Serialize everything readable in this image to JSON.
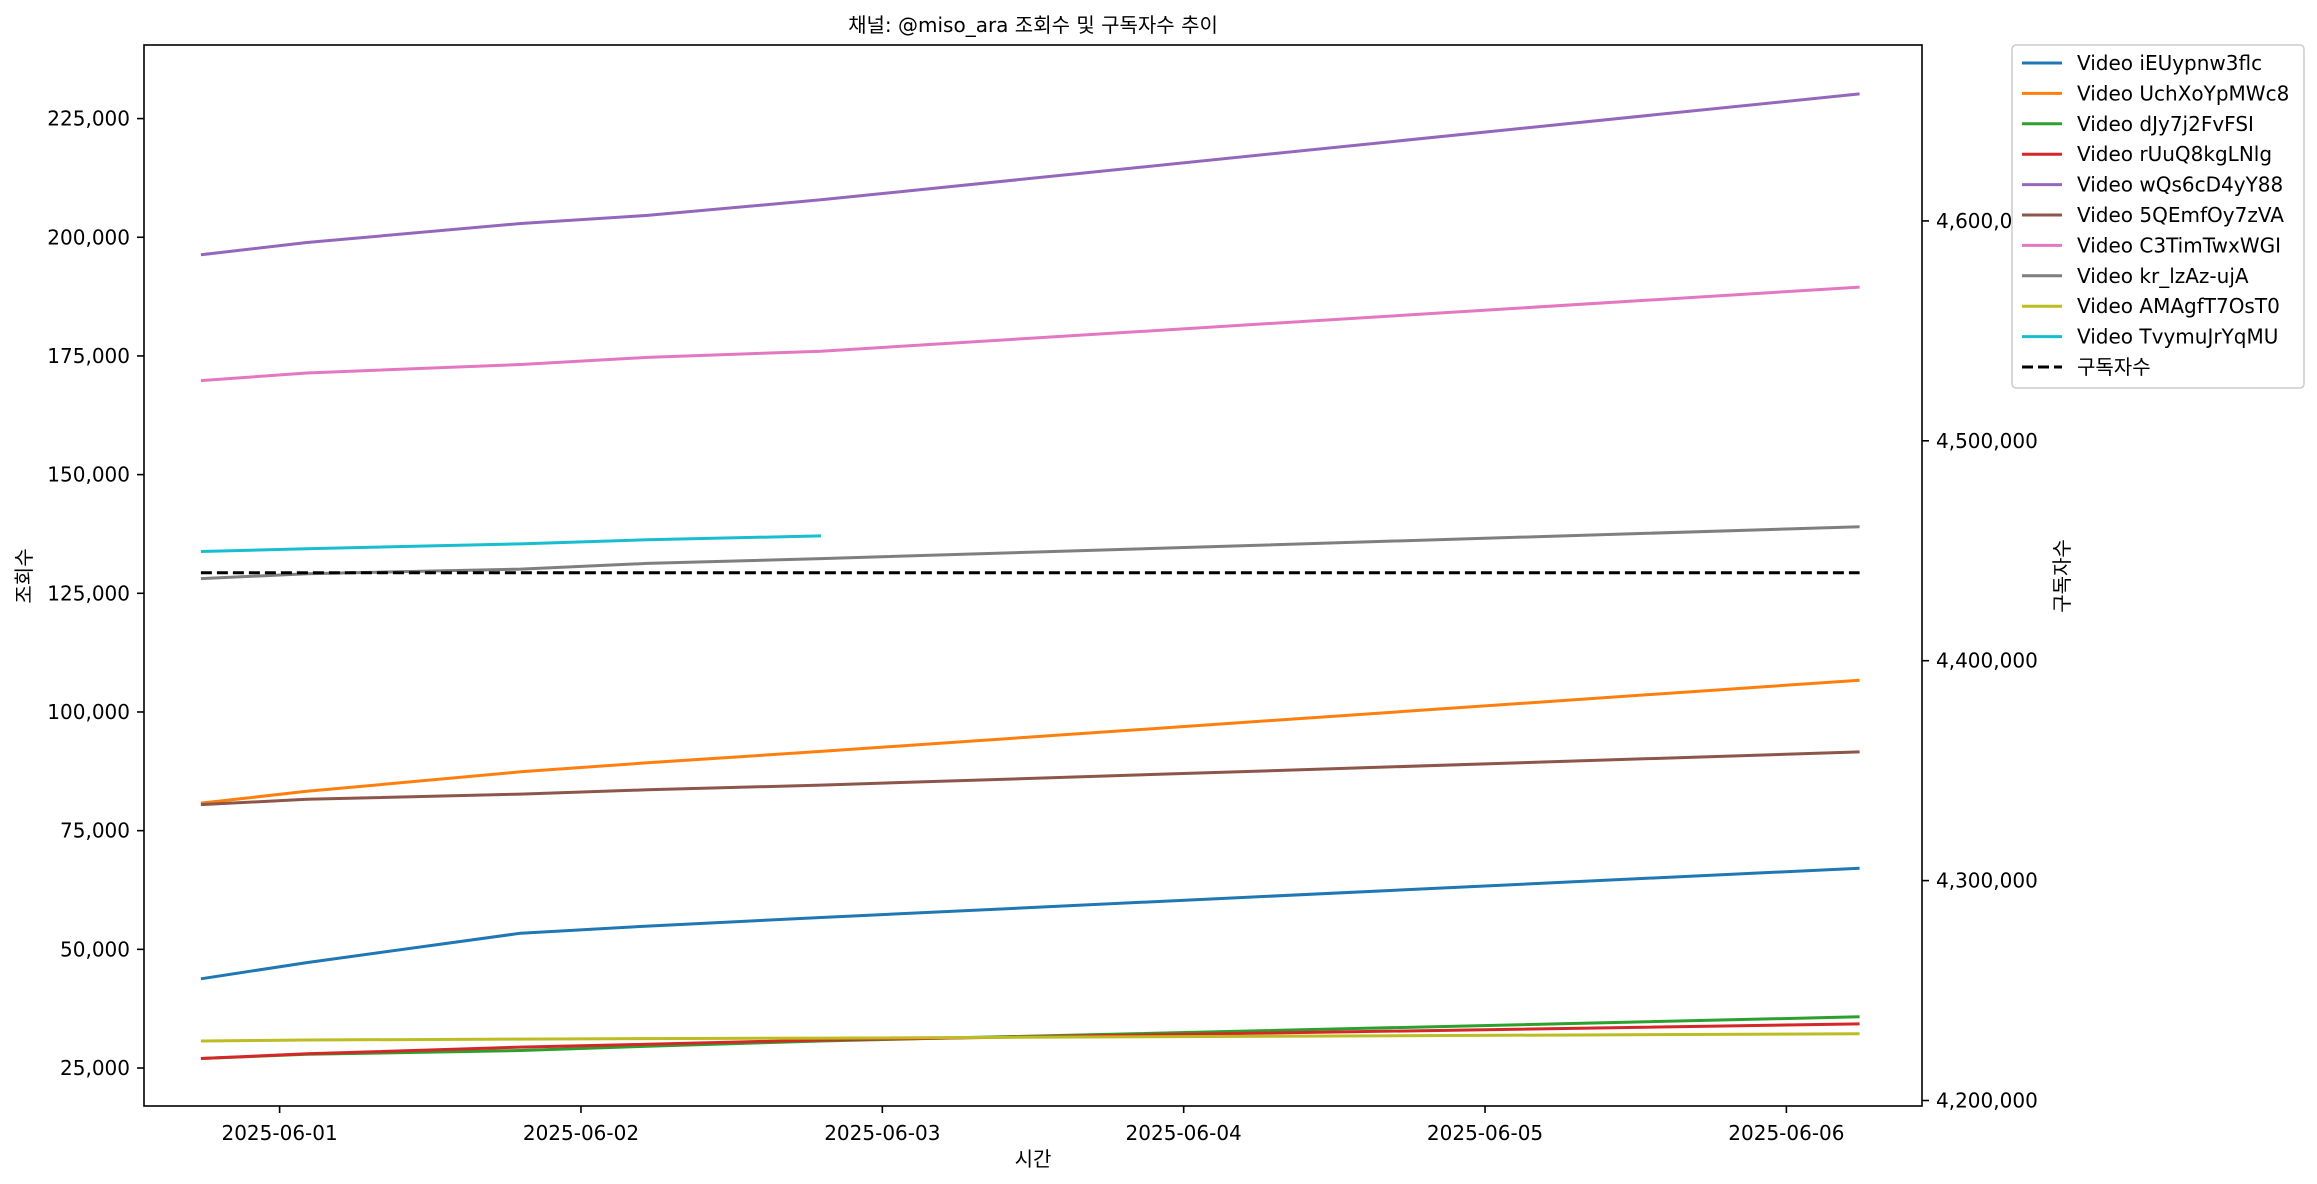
{
  "chart_data": {
    "type": "line",
    "title": "채널: @miso_ara 조회수 및 구독자수 추이",
    "xlabel": "시간",
    "ylabel": "조회수",
    "y2label": "구독자수",
    "xlim": [
      "2025-05-31T13:12",
      "2025-06-06T10:48"
    ],
    "ylim": [
      17000,
      240500
    ],
    "y2lim": [
      4197500,
      4680000
    ],
    "x_ticks": [
      "2025-06-01",
      "2025-06-02",
      "2025-06-03",
      "2025-06-04",
      "2025-06-05",
      "2025-06-06"
    ],
    "y_ticks": [
      25000,
      50000,
      75000,
      100000,
      125000,
      150000,
      175000,
      200000,
      225000
    ],
    "y_tick_labels": [
      "25,000",
      "50,000",
      "75,000",
      "100,000",
      "125,000",
      "150,000",
      "175,000",
      "200,000",
      "225,000"
    ],
    "y2_ticks": [
      4200000,
      4300000,
      4400000,
      4500000,
      4600000
    ],
    "y2_tick_labels": [
      "4,200,000",
      "4,300,000",
      "4,400,000",
      "4,500,000",
      "4,600,000"
    ],
    "grid": false,
    "legend_position": "outside top-right",
    "series": [
      {
        "name": "Video iEUypnw3flc",
        "color": "#1f77b4",
        "axis": "left",
        "x": [
          "2025-05-31T17:44",
          "2025-06-01T02:10",
          "2025-06-01T19:12",
          "2025-06-02T05:17",
          "2025-06-02T19:07",
          "2025-06-06T05:50"
        ],
        "y": [
          43800,
          47200,
          53400,
          54900,
          56700,
          67100
        ]
      },
      {
        "name": "Video UchXoYpMWc8",
        "color": "#ff7f0e",
        "axis": "left",
        "x": [
          "2025-05-31T17:44",
          "2025-06-01T02:10",
          "2025-06-01T19:12",
          "2025-06-02T05:17",
          "2025-06-02T19:07",
          "2025-06-06T05:50"
        ],
        "y": [
          80800,
          83300,
          87400,
          89300,
          91700,
          106700
        ]
      },
      {
        "name": "Video dJy7j2FvFSI",
        "color": "#2ca02c",
        "axis": "left",
        "x": [
          "2025-05-31T17:44",
          "2025-06-01T02:10",
          "2025-06-01T19:12",
          "2025-06-02T05:17",
          "2025-06-02T19:07",
          "2025-06-06T05:50"
        ],
        "y": [
          27000,
          27900,
          28700,
          29600,
          30700,
          35800
        ]
      },
      {
        "name": "Video rUuQ8kgLNlg",
        "color": "#d62728",
        "axis": "left",
        "x": [
          "2025-05-31T17:44",
          "2025-06-01T02:10",
          "2025-06-01T19:12",
          "2025-06-02T05:17",
          "2025-06-02T19:07",
          "2025-06-06T05:50"
        ],
        "y": [
          27000,
          28000,
          29400,
          30000,
          30900,
          34300
        ]
      },
      {
        "name": "Video wQs6cD4yY88",
        "color": "#9467bd",
        "axis": "left",
        "x": [
          "2025-05-31T17:44",
          "2025-06-01T02:10",
          "2025-06-01T19:12",
          "2025-06-02T05:17",
          "2025-06-02T19:07",
          "2025-06-06T05:50"
        ],
        "y": [
          196300,
          198900,
          202900,
          204600,
          207900,
          230200
        ]
      },
      {
        "name": "Video 5QEmfOy7zVA",
        "color": "#8c564b",
        "axis": "left",
        "x": [
          "2025-05-31T17:44",
          "2025-06-01T02:10",
          "2025-06-01T19:12",
          "2025-06-02T05:17",
          "2025-06-02T19:07",
          "2025-06-06T05:50"
        ],
        "y": [
          80500,
          81600,
          82700,
          83600,
          84600,
          91600
        ]
      },
      {
        "name": "Video C3TimTwxWGI",
        "color": "#e377c2",
        "axis": "left",
        "x": [
          "2025-05-31T17:44",
          "2025-06-01T02:10",
          "2025-06-01T19:12",
          "2025-06-02T05:17",
          "2025-06-02T19:07",
          "2025-06-06T05:50"
        ],
        "y": [
          169800,
          171400,
          173200,
          174700,
          176000,
          189500
        ]
      },
      {
        "name": "Video kr_lzAz-ujA",
        "color": "#7f7f7f",
        "axis": "left",
        "x": [
          "2025-05-31T17:44",
          "2025-06-01T02:10",
          "2025-06-01T19:12",
          "2025-06-02T05:17",
          "2025-06-02T19:07",
          "2025-06-06T05:50"
        ],
        "y": [
          128100,
          129100,
          130100,
          131300,
          132300,
          139000
        ]
      },
      {
        "name": "Video AMAgfT7OsT0",
        "color": "#bcbd22",
        "axis": "left",
        "x": [
          "2025-05-31T17:44",
          "2025-06-01T02:10",
          "2025-06-01T19:12",
          "2025-06-02T05:17",
          "2025-06-02T19:07",
          "2025-06-06T05:50"
        ],
        "y": [
          30700,
          30900,
          31100,
          31200,
          31300,
          32200
        ]
      },
      {
        "name": "Video TvymuJrYqMU",
        "color": "#17becf",
        "axis": "left",
        "x": [
          "2025-05-31T17:44",
          "2025-06-01T02:10",
          "2025-06-01T19:12",
          "2025-06-02T05:17",
          "2025-06-02T19:07"
        ],
        "y": [
          133800,
          134400,
          135400,
          136300,
          137100
        ]
      },
      {
        "name": "구독자수",
        "color": "#000000",
        "axis": "right",
        "dash": true,
        "x": [
          "2025-05-31T17:44",
          "2025-06-06T05:50"
        ],
        "y": [
          4440000,
          4440000
        ]
      }
    ]
  }
}
